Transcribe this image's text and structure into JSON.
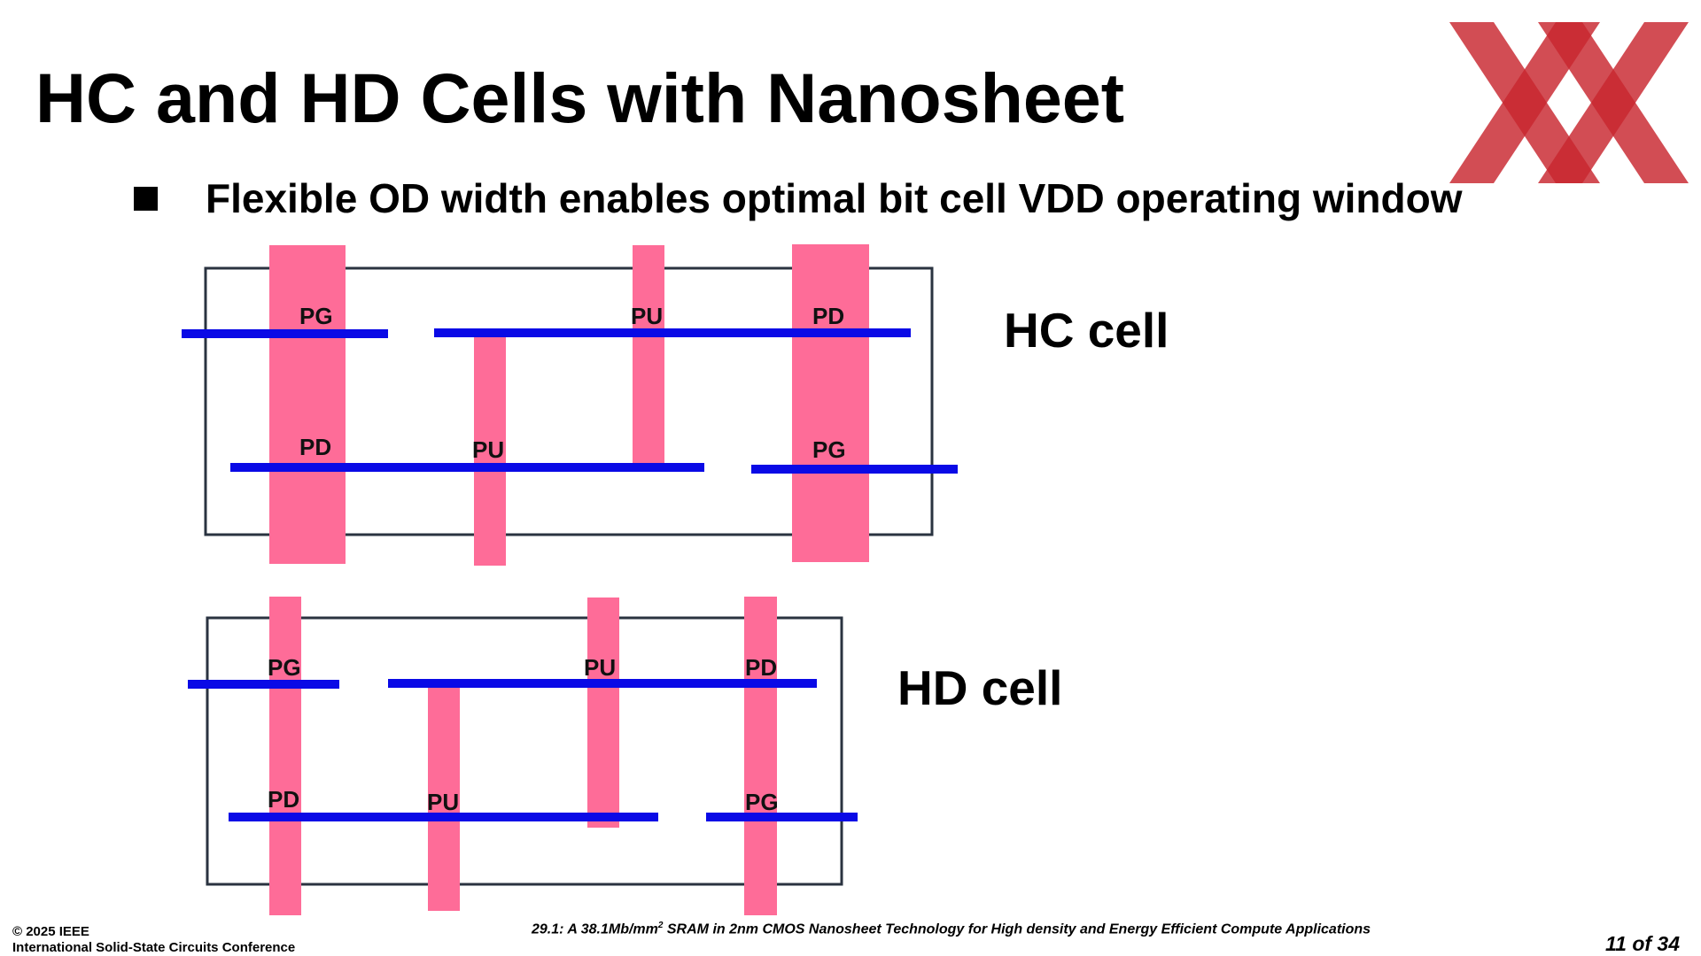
{
  "slide": {
    "title": "HC and HD Cells with Nanosheet",
    "bullet": "Flexible OD width enables optimal bit cell VDD operating window",
    "page_number": "11 of 34"
  },
  "colors": {
    "od_fill": "#fe6c98",
    "gate_line": "#0a0ae6",
    "cell_border": "#2a3340",
    "logo_red": "#c8262e"
  },
  "diagram": {
    "hc_cell": {
      "label": "HC cell",
      "transistors": [
        "PG",
        "PU",
        "PD",
        "PD",
        "PU",
        "PG"
      ]
    },
    "hd_cell": {
      "label": "HD cell",
      "transistors": [
        "PG",
        "PU",
        "PD",
        "PD",
        "PU",
        "PG"
      ]
    }
  },
  "footer": {
    "copyright": "© 2025 IEEE",
    "conference": "International Solid-State Circuits Conference",
    "paper_prefix": "29.1: A 38.1Mb/mm",
    "paper_sup": "2",
    "paper_suffix": " SRAM in 2nm CMOS Nanosheet Technology for High density and Energy Efficient Compute Applications"
  },
  "logo": {
    "icon": "isscc-logo-icon"
  }
}
